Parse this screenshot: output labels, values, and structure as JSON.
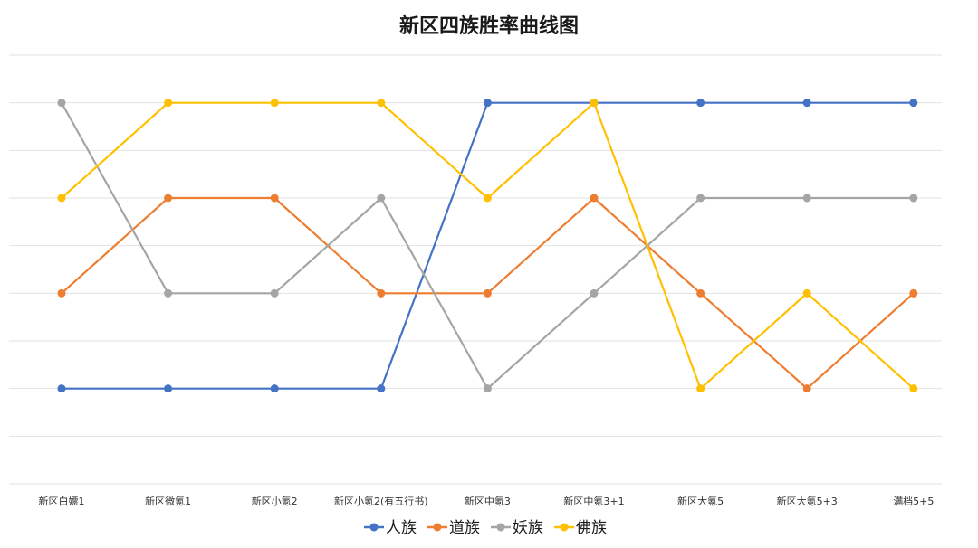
{
  "chart_data": {
    "type": "line",
    "title": "新区四族胜率曲线图",
    "categories": [
      "新区白嫖1",
      "新区微氪1",
      "新区小氪2",
      "新区小氪2(有五行书)",
      "新区中氪3",
      "新区中氪3+1",
      "新区大氪5",
      "新区大氪5+3",
      "满档5+5"
    ],
    "ylim": [
      0,
      9
    ],
    "grid": true,
    "y_tick_labels_visible": false,
    "legend_position": "bottom",
    "series": [
      {
        "name": "人族",
        "color": "#4472C4",
        "values": [
          2,
          2,
          2,
          2,
          8,
          8,
          8,
          8,
          8
        ]
      },
      {
        "name": "道族",
        "color": "#ED7D31",
        "values": [
          4,
          6,
          6,
          4,
          4,
          6,
          4,
          2,
          4
        ]
      },
      {
        "name": "妖族",
        "color": "#A5A5A5",
        "values": [
          8,
          4,
          4,
          6,
          2,
          4,
          6,
          6,
          6
        ]
      },
      {
        "name": "佛族",
        "color": "#FFC000",
        "values": [
          6,
          8,
          8,
          8,
          6,
          8,
          2,
          4,
          2
        ]
      }
    ]
  }
}
